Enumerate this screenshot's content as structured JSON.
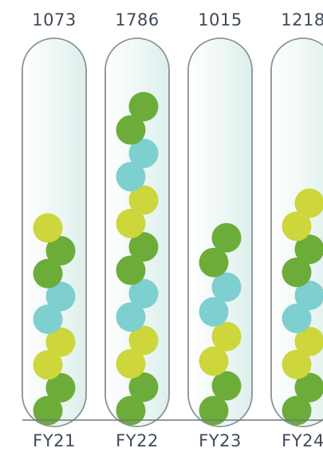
{
  "chart_data": {
    "type": "bar",
    "categories": [
      "FY21",
      "FY22",
      "FY23",
      "FY24"
    ],
    "values": [
      1073,
      1786,
      1015,
      1218
    ],
    "ylim": [
      0,
      2000
    ],
    "grid": false,
    "colors": {
      "dark_green": "#6cad3a",
      "lime": "#cdd63b",
      "teal": "#7ecfcf",
      "tube_outline": "#8a9298",
      "tube_fill": "#eaf5f3",
      "baseline": "#6e767c",
      "text": "#3f4a5a"
    }
  }
}
